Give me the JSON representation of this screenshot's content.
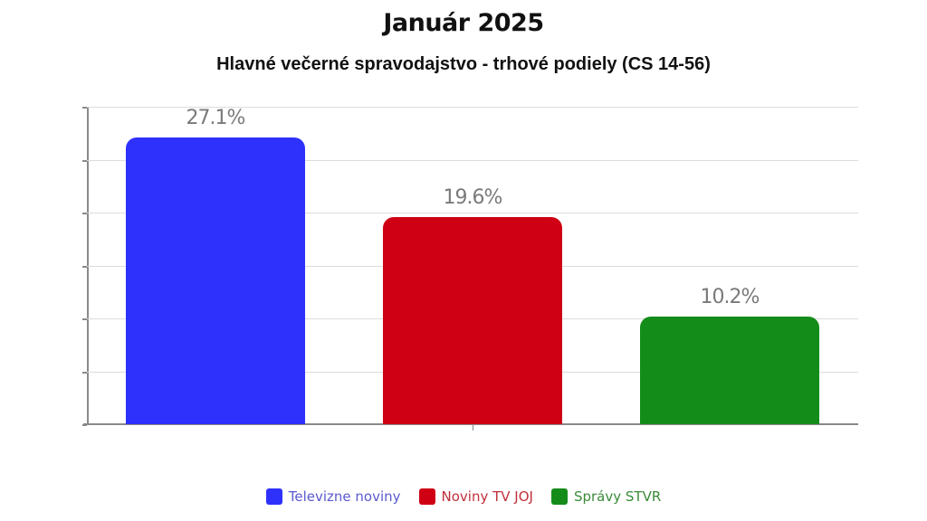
{
  "chart_data": {
    "type": "bar",
    "title": "Január 2025",
    "subtitle": "Hlavné večerné spravodajstvo - trhové podiely (CS 14-56)",
    "categories": [
      "Televizne noviny",
      "Noviny TV JOJ",
      "Správy STVR"
    ],
    "values": [
      27.1,
      19.6,
      10.2
    ],
    "value_labels": [
      "27.1%",
      "19.6%",
      "10.2%"
    ],
    "colors": [
      "#2e31fb",
      "#cf0013",
      "#148c1a"
    ],
    "xlabel": "",
    "ylabel": "",
    "ylim": [
      0,
      30
    ],
    "grid": true,
    "y_tick_labels_visible": false,
    "legend": {
      "position": "bottom",
      "entries": [
        "Televizne noviny",
        "Noviny TV JOJ",
        "Správy STVR"
      ]
    }
  },
  "legend_text_colors": [
    "#5a5ad0",
    "#c0303a",
    "#3a8a3a"
  ]
}
